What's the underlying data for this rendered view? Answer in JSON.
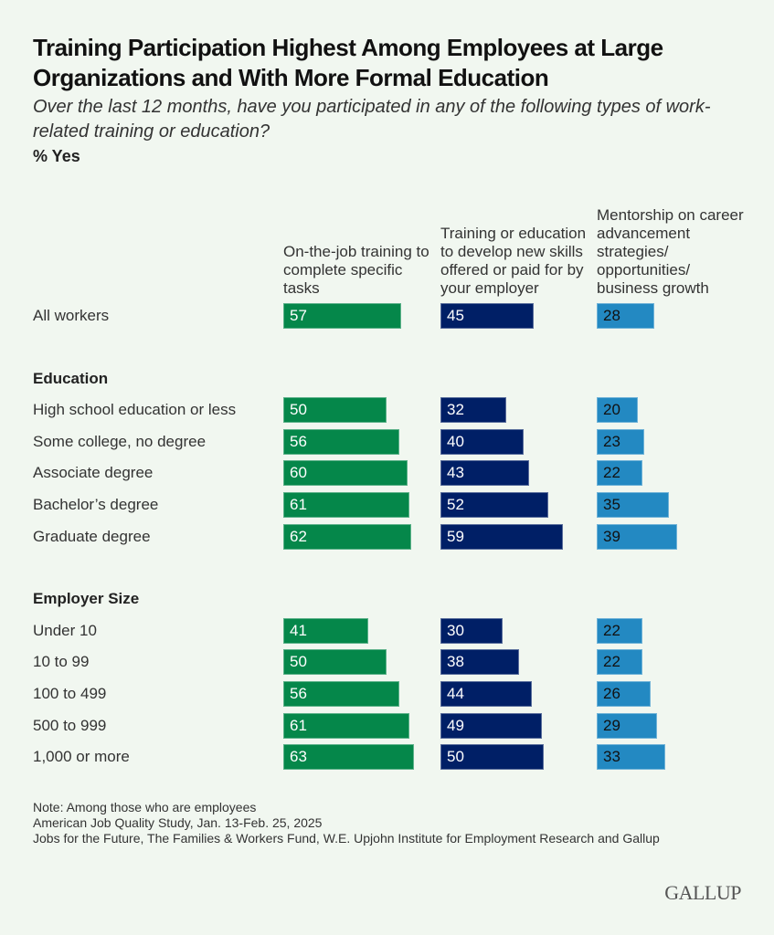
{
  "chart_data": {
    "type": "bar",
    "orientation": "horizontal",
    "title": "Training Participation Highest Among Employees at Large Organizations and With More Formal Education",
    "subtitle": "Over the last 12 months, have you participated in any of the following types of work-related training or education?",
    "unit_label": "% Yes",
    "xlim": [
      0,
      100
    ],
    "grid": false,
    "series": [
      {
        "name": "On-the-job training to complete specific tasks",
        "color": "#05874a",
        "label_color": "#ffffff"
      },
      {
        "name": "Training or education to develop new skills offered or paid for by your employer",
        "color": "#001f66",
        "label_color": "#ffffff"
      },
      {
        "name": "Mentorship on career advancement strategies/ opportunities/ business growth",
        "color": "#2389c2",
        "label_color": "#111111"
      }
    ],
    "groups": [
      {
        "heading": "",
        "rows": [
          {
            "label": "All workers",
            "values": [
              57,
              45,
              28
            ]
          }
        ]
      },
      {
        "heading": "Education",
        "rows": [
          {
            "label": "High school education or less",
            "values": [
              50,
              32,
              20
            ]
          },
          {
            "label": "Some college, no degree",
            "values": [
              56,
              40,
              23
            ]
          },
          {
            "label": "Associate degree",
            "values": [
              60,
              43,
              22
            ]
          },
          {
            "label": "Bachelor’s degree",
            "values": [
              61,
              52,
              35
            ]
          },
          {
            "label": "Graduate degree",
            "values": [
              62,
              59,
              39
            ]
          }
        ]
      },
      {
        "heading": "Employer Size",
        "rows": [
          {
            "label": "Under 10",
            "values": [
              41,
              30,
              22
            ]
          },
          {
            "label": "10 to 99",
            "values": [
              50,
              38,
              22
            ]
          },
          {
            "label": "100 to 499",
            "values": [
              56,
              44,
              26
            ]
          },
          {
            "label": "500 to 999",
            "values": [
              61,
              49,
              29
            ]
          },
          {
            "label": "1,000 or more",
            "values": [
              63,
              50,
              33
            ]
          }
        ]
      }
    ]
  },
  "footer": {
    "note": "Note: Among those who are employees",
    "source_lines": [
      "American Job Quality Study, Jan. 13-Feb. 25, 2025",
      "Jobs for the Future, The Families & Workers Fund, W.E. Upjohn Institute for Employment Research and Gallup"
    ],
    "logo": "GALLUP"
  }
}
